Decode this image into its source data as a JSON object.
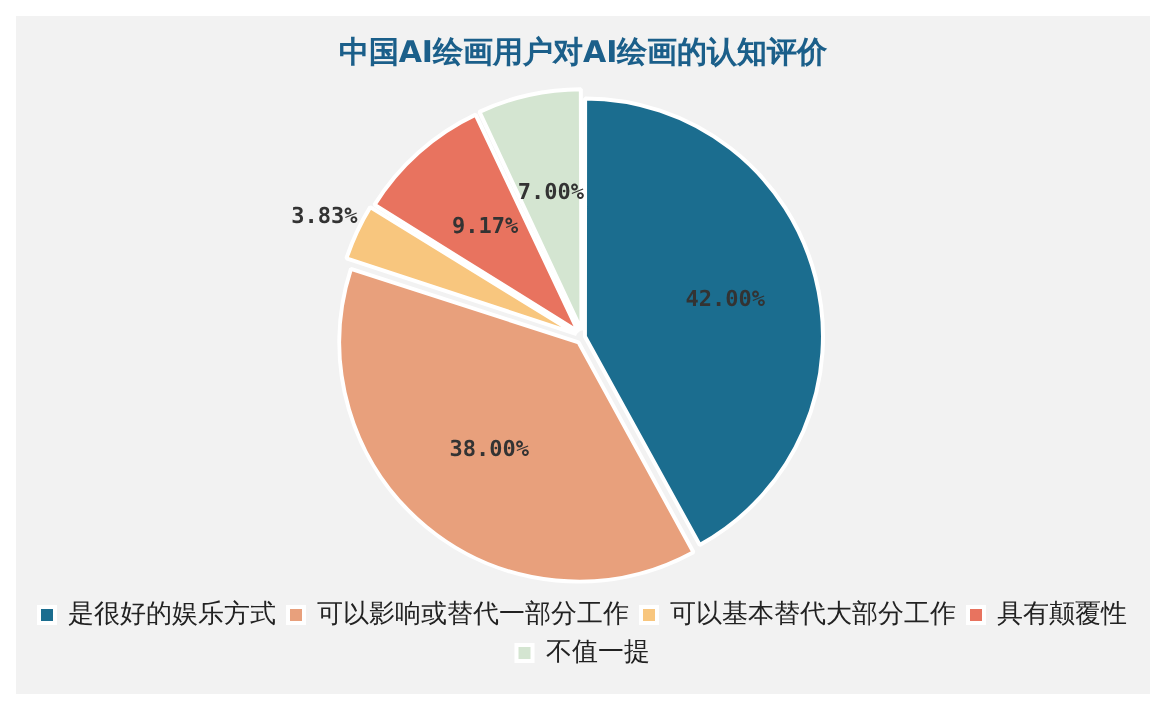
{
  "chart_data": {
    "type": "pie",
    "title": "中国AI绘画用户对AI绘画的认知评价",
    "categories": [
      "是很好的娱乐方式",
      "可以影响或替代一部分工作",
      "可以基本替代大部分工作",
      "具有颠覆性",
      "不值一提"
    ],
    "values": [
      42.0,
      38.0,
      3.83,
      9.17,
      7.0
    ],
    "value_labels": [
      "42.00%",
      "38.00%",
      "3.83%",
      "9.17%",
      "7.00%"
    ],
    "colors": [
      "#1b6d8f",
      "#e8a07c",
      "#f8c67e",
      "#e8735f",
      "#d4e5d1"
    ],
    "legend": "bottom"
  }
}
